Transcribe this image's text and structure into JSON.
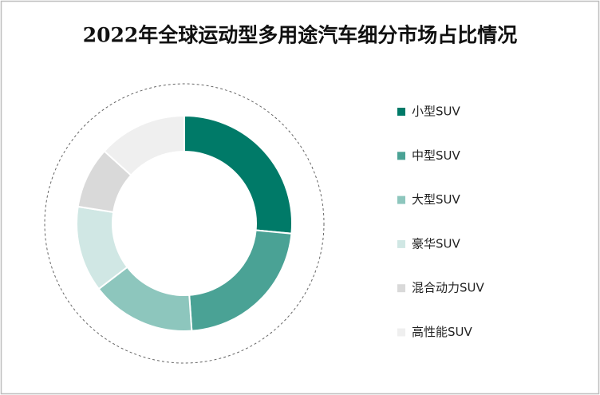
{
  "chart_data": {
    "type": "donut",
    "title": "2022年全球运动型多用途汽车细分市场占比情况",
    "categories": [
      "小型SUV",
      "中型SUV",
      "大型SUV",
      "豪华SUV",
      "混合动力SUV",
      "高性能SUV"
    ],
    "values": [
      26.5,
      22.4,
      15.7,
      12.9,
      9.2,
      13.3
    ],
    "colors": [
      "#007a68",
      "#4aa295",
      "#8dc6bd",
      "#d0e7e4",
      "#d9d9d9",
      "#efefef"
    ],
    "legend": "right"
  }
}
